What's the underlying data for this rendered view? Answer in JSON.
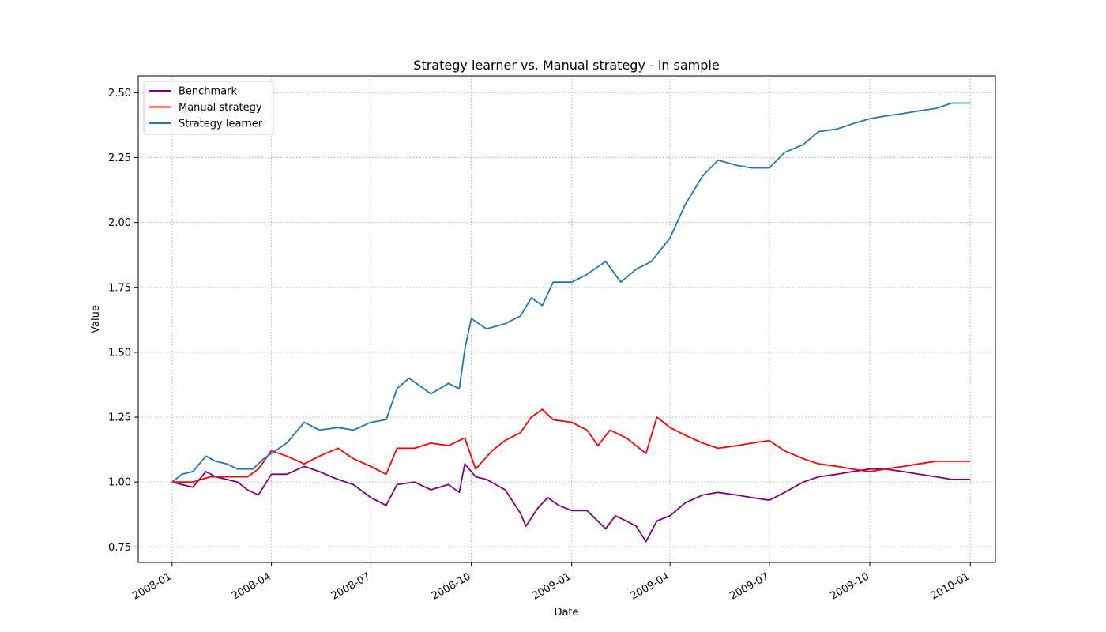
{
  "chart_data": {
    "type": "line",
    "title": "Strategy learner vs. Manual strategy - in sample",
    "xlabel": "Date",
    "ylabel": "Value",
    "xlim": [
      "2007-12-01",
      "2010-01-24"
    ],
    "ylim": [
      0.69,
      2.565
    ],
    "grid": true,
    "legend_position": "top-left",
    "x_ticks": [
      "2008-01",
      "2008-04",
      "2008-07",
      "2008-10",
      "2009-01",
      "2009-04",
      "2009-07",
      "2009-10",
      "2010-01"
    ],
    "y_ticks": [
      "0.75",
      "1.00",
      "1.25",
      "1.50",
      "1.75",
      "2.00",
      "2.25",
      "2.50"
    ],
    "series": [
      {
        "name": "Benchmark",
        "color": "#800080",
        "points": [
          [
            "2008-01-01",
            1.0
          ],
          [
            "2008-01-10",
            0.99
          ],
          [
            "2008-01-20",
            0.98
          ],
          [
            "2008-02-01",
            1.04
          ],
          [
            "2008-02-10",
            1.02
          ],
          [
            "2008-02-20",
            1.01
          ],
          [
            "2008-03-01",
            1.0
          ],
          [
            "2008-03-10",
            0.97
          ],
          [
            "2008-03-20",
            0.95
          ],
          [
            "2008-04-01",
            1.03
          ],
          [
            "2008-04-15",
            1.03
          ],
          [
            "2008-05-01",
            1.06
          ],
          [
            "2008-05-15",
            1.04
          ],
          [
            "2008-06-01",
            1.01
          ],
          [
            "2008-06-15",
            0.99
          ],
          [
            "2008-07-01",
            0.94
          ],
          [
            "2008-07-15",
            0.91
          ],
          [
            "2008-07-25",
            0.99
          ],
          [
            "2008-08-10",
            1.0
          ],
          [
            "2008-08-25",
            0.97
          ],
          [
            "2008-09-10",
            0.99
          ],
          [
            "2008-09-20",
            0.96
          ],
          [
            "2008-09-25",
            1.07
          ],
          [
            "2008-10-05",
            1.02
          ],
          [
            "2008-10-15",
            1.01
          ],
          [
            "2008-11-01",
            0.97
          ],
          [
            "2008-11-15",
            0.88
          ],
          [
            "2008-11-20",
            0.83
          ],
          [
            "2008-12-01",
            0.9
          ],
          [
            "2008-12-10",
            0.94
          ],
          [
            "2008-12-20",
            0.91
          ],
          [
            "2009-01-01",
            0.89
          ],
          [
            "2009-01-15",
            0.89
          ],
          [
            "2009-02-01",
            0.82
          ],
          [
            "2009-02-10",
            0.87
          ],
          [
            "2009-02-20",
            0.85
          ],
          [
            "2009-03-01",
            0.83
          ],
          [
            "2009-03-10",
            0.77
          ],
          [
            "2009-03-20",
            0.85
          ],
          [
            "2009-04-01",
            0.87
          ],
          [
            "2009-04-15",
            0.92
          ],
          [
            "2009-05-01",
            0.95
          ],
          [
            "2009-05-15",
            0.96
          ],
          [
            "2009-06-01",
            0.95
          ],
          [
            "2009-06-15",
            0.94
          ],
          [
            "2009-07-01",
            0.93
          ],
          [
            "2009-07-15",
            0.96
          ],
          [
            "2009-08-01",
            1.0
          ],
          [
            "2009-08-15",
            1.02
          ],
          [
            "2009-09-01",
            1.03
          ],
          [
            "2009-09-15",
            1.04
          ],
          [
            "2009-10-01",
            1.05
          ],
          [
            "2009-10-15",
            1.05
          ],
          [
            "2009-11-01",
            1.04
          ],
          [
            "2009-11-15",
            1.03
          ],
          [
            "2009-12-01",
            1.02
          ],
          [
            "2009-12-15",
            1.01
          ],
          [
            "2010-01-01",
            1.01
          ]
        ]
      },
      {
        "name": "Manual strategy",
        "color": "#ff0000",
        "points": [
          [
            "2008-01-01",
            1.0
          ],
          [
            "2008-01-20",
            1.0
          ],
          [
            "2008-02-05",
            1.02
          ],
          [
            "2008-02-20",
            1.02
          ],
          [
            "2008-03-10",
            1.02
          ],
          [
            "2008-03-20",
            1.05
          ],
          [
            "2008-04-01",
            1.12
          ],
          [
            "2008-04-15",
            1.1
          ],
          [
            "2008-05-01",
            1.07
          ],
          [
            "2008-05-15",
            1.1
          ],
          [
            "2008-06-01",
            1.13
          ],
          [
            "2008-06-15",
            1.09
          ],
          [
            "2008-07-01",
            1.06
          ],
          [
            "2008-07-15",
            1.03
          ],
          [
            "2008-07-25",
            1.13
          ],
          [
            "2008-08-10",
            1.13
          ],
          [
            "2008-08-25",
            1.15
          ],
          [
            "2008-09-10",
            1.14
          ],
          [
            "2008-09-25",
            1.17
          ],
          [
            "2008-10-05",
            1.05
          ],
          [
            "2008-10-20",
            1.12
          ],
          [
            "2008-11-01",
            1.16
          ],
          [
            "2008-11-15",
            1.19
          ],
          [
            "2008-11-25",
            1.25
          ],
          [
            "2008-12-05",
            1.28
          ],
          [
            "2008-12-15",
            1.24
          ],
          [
            "2009-01-01",
            1.23
          ],
          [
            "2009-01-15",
            1.2
          ],
          [
            "2009-01-25",
            1.14
          ],
          [
            "2009-02-05",
            1.2
          ],
          [
            "2009-02-20",
            1.17
          ],
          [
            "2009-03-01",
            1.14
          ],
          [
            "2009-03-10",
            1.11
          ],
          [
            "2009-03-20",
            1.25
          ],
          [
            "2009-04-01",
            1.21
          ],
          [
            "2009-04-15",
            1.18
          ],
          [
            "2009-05-01",
            1.15
          ],
          [
            "2009-05-15",
            1.13
          ],
          [
            "2009-06-01",
            1.14
          ],
          [
            "2009-06-15",
            1.15
          ],
          [
            "2009-07-01",
            1.16
          ],
          [
            "2009-07-15",
            1.12
          ],
          [
            "2009-08-01",
            1.09
          ],
          [
            "2009-08-15",
            1.07
          ],
          [
            "2009-09-01",
            1.06
          ],
          [
            "2009-09-15",
            1.05
          ],
          [
            "2009-10-01",
            1.04
          ],
          [
            "2009-10-15",
            1.05
          ],
          [
            "2009-11-01",
            1.06
          ],
          [
            "2009-11-15",
            1.07
          ],
          [
            "2009-12-01",
            1.08
          ],
          [
            "2009-12-15",
            1.08
          ],
          [
            "2010-01-01",
            1.08
          ]
        ]
      },
      {
        "name": "Strategy learner",
        "color": "#1f77b4",
        "points": [
          [
            "2008-01-01",
            1.0
          ],
          [
            "2008-01-10",
            1.03
          ],
          [
            "2008-01-20",
            1.04
          ],
          [
            "2008-02-01",
            1.1
          ],
          [
            "2008-02-10",
            1.08
          ],
          [
            "2008-02-20",
            1.07
          ],
          [
            "2008-03-01",
            1.05
          ],
          [
            "2008-03-15",
            1.05
          ],
          [
            "2008-03-25",
            1.09
          ],
          [
            "2008-04-01",
            1.11
          ],
          [
            "2008-04-15",
            1.15
          ],
          [
            "2008-05-01",
            1.23
          ],
          [
            "2008-05-15",
            1.2
          ],
          [
            "2008-06-01",
            1.21
          ],
          [
            "2008-06-15",
            1.2
          ],
          [
            "2008-07-01",
            1.23
          ],
          [
            "2008-07-15",
            1.24
          ],
          [
            "2008-07-25",
            1.36
          ],
          [
            "2008-08-05",
            1.4
          ],
          [
            "2008-08-15",
            1.37
          ],
          [
            "2008-08-25",
            1.34
          ],
          [
            "2008-09-10",
            1.38
          ],
          [
            "2008-09-20",
            1.36
          ],
          [
            "2008-09-25",
            1.51
          ],
          [
            "2008-10-01",
            1.63
          ],
          [
            "2008-10-15",
            1.59
          ],
          [
            "2008-11-01",
            1.61
          ],
          [
            "2008-11-15",
            1.64
          ],
          [
            "2008-11-25",
            1.71
          ],
          [
            "2008-12-05",
            1.68
          ],
          [
            "2008-12-15",
            1.77
          ],
          [
            "2009-01-01",
            1.77
          ],
          [
            "2009-01-15",
            1.8
          ],
          [
            "2009-02-01",
            1.85
          ],
          [
            "2009-02-15",
            1.77
          ],
          [
            "2009-03-01",
            1.82
          ],
          [
            "2009-03-15",
            1.85
          ],
          [
            "2009-04-01",
            1.94
          ],
          [
            "2009-04-15",
            2.07
          ],
          [
            "2009-05-01",
            2.18
          ],
          [
            "2009-05-15",
            2.24
          ],
          [
            "2009-06-01",
            2.22
          ],
          [
            "2009-06-15",
            2.21
          ],
          [
            "2009-07-01",
            2.21
          ],
          [
            "2009-07-15",
            2.27
          ],
          [
            "2009-08-01",
            2.3
          ],
          [
            "2009-08-15",
            2.35
          ],
          [
            "2009-09-01",
            2.36
          ],
          [
            "2009-09-15",
            2.38
          ],
          [
            "2009-10-01",
            2.4
          ],
          [
            "2009-10-15",
            2.41
          ],
          [
            "2009-11-01",
            2.42
          ],
          [
            "2009-11-15",
            2.43
          ],
          [
            "2009-12-01",
            2.44
          ],
          [
            "2009-12-15",
            2.46
          ],
          [
            "2010-01-01",
            2.46
          ]
        ]
      }
    ]
  }
}
